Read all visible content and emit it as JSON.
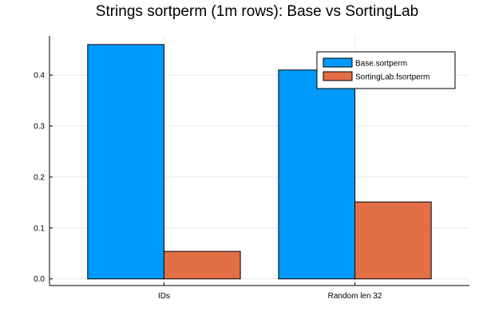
{
  "chart_data": {
    "type": "bar",
    "title": "Strings sortperm (1m rows): Base vs SortingLab",
    "xlabel": "",
    "ylabel": "",
    "categories": [
      "IDs",
      "Random len 32"
    ],
    "series": [
      {
        "name": "Base.sortperm",
        "color": "#009AFA",
        "values": [
          0.46,
          0.41
        ]
      },
      {
        "name": "SortingLab.fsortperm",
        "color": "#E26F46",
        "values": [
          0.054,
          0.151
        ]
      }
    ],
    "ylim": [
      -0.013,
      0.477
    ],
    "yticks": [
      0.0,
      0.1,
      0.2,
      0.3,
      0.4
    ],
    "ytick_labels": [
      "0.0",
      "0.1",
      "0.2",
      "0.3",
      "0.4"
    ],
    "grid": true,
    "legend_position": "top-right"
  }
}
